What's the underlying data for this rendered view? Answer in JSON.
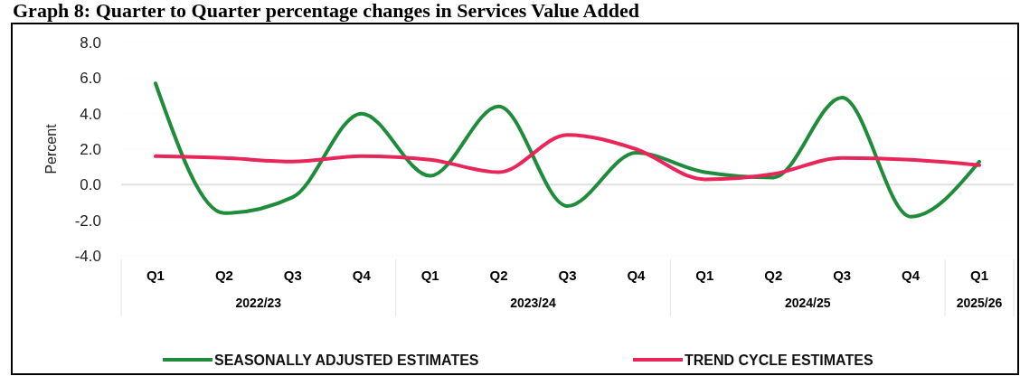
{
  "chart_data": {
    "type": "line",
    "title": "Graph 8: Quarter to Quarter percentage changes in Services Value Added",
    "ylabel": "Percent",
    "categories": [
      "Q1",
      "Q2",
      "Q3",
      "Q4",
      "Q1",
      "Q2",
      "Q3",
      "Q4",
      "Q1",
      "Q2",
      "Q3",
      "Q4",
      "Q1"
    ],
    "annotations": [
      "2022/23",
      "2023/24",
      "2024/25",
      "2025/26"
    ],
    "series": [
      {
        "name": "SEASONALLY ADJUSTED ESTIMATES",
        "color": "#1e8c3a",
        "values": [
          5.7,
          -1.6,
          -0.7,
          4.0,
          0.5,
          4.4,
          -1.2,
          1.8,
          0.7,
          0.4,
          4.9,
          -1.8,
          1.3
        ]
      },
      {
        "name": "TREND CYCLE ESTIMATES",
        "color": "#e8265a",
        "values": [
          1.6,
          1.5,
          1.3,
          1.6,
          1.4,
          0.7,
          2.8,
          2.0,
          0.3,
          0.6,
          1.5,
          1.4,
          1.1
        ]
      }
    ],
    "ylim": [
      -4,
      8
    ],
    "yticks": [
      {
        "value": -4,
        "label": "-4.0"
      },
      {
        "value": -2,
        "label": "-2.0"
      },
      {
        "value": 0,
        "label": "0.0"
      },
      {
        "value": 2,
        "label": "2.0"
      },
      {
        "value": 4,
        "label": "4.0"
      },
      {
        "value": 6,
        "label": "6.0"
      },
      {
        "value": 8,
        "label": "8.0"
      }
    ],
    "grid": "y",
    "legend": "bottom",
    "marker": "none",
    "line_style": "solid"
  }
}
